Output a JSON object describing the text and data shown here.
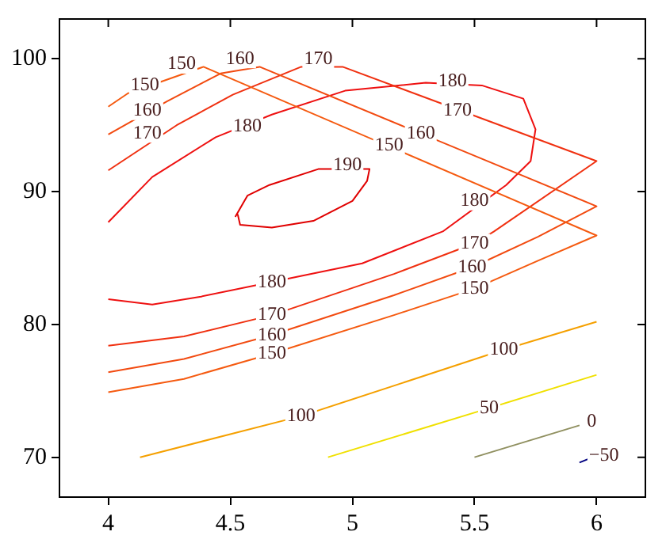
{
  "chart_data": {
    "type": "line",
    "xlim": [
      3.8,
      6.2
    ],
    "ylim": [
      67,
      103
    ],
    "xticks": [
      4,
      4.5,
      5,
      5.5,
      6
    ],
    "yticks": [
      70,
      80,
      90,
      100
    ],
    "grid": false,
    "legend": false,
    "line_style": "solid",
    "series": [
      {
        "color": "#f55a10",
        "x": [
          4,
          4.08,
          4.39,
          6,
          5.76,
          5.5,
          5.17,
          4.67,
          4.31,
          4
        ],
        "values": [
          96.4,
          97.4,
          99.4,
          86.7,
          84.8,
          82.7,
          80.7,
          77.8,
          75.9,
          74.9
        ]
      },
      {
        "color": "#f24a10",
        "x": [
          4,
          4.24,
          4.46,
          4.62,
          6,
          5.76,
          5.49,
          5.17,
          4.67,
          4.31,
          4
        ],
        "values": [
          94.3,
          96.8,
          98.9,
          99.4,
          88.9,
          86.6,
          84.3,
          82.2,
          79.2,
          77.4,
          76.4
        ]
      },
      {
        "color": "#f03010",
        "x": [
          4,
          4.28,
          4.51,
          4.79,
          4.96,
          6,
          5.58,
          5.5,
          5.17,
          4.67,
          4.31,
          4
        ],
        "values": [
          91.6,
          95,
          97.3,
          99.4,
          99.4,
          92.3,
          87,
          86.1,
          83.8,
          80.7,
          79.1,
          78.4
        ]
      },
      {
        "color": "#ee1010",
        "x": [
          4,
          4.18,
          4.44,
          4.67,
          4.97,
          5.3,
          5.53,
          5.7,
          5.75,
          5.73,
          5.63,
          5.37,
          5.04,
          4.67,
          4.38,
          4.18,
          4
        ],
        "values": [
          87.7,
          91.1,
          94.1,
          95.8,
          97.6,
          98.2,
          98,
          97,
          94.7,
          92.3,
          90.5,
          87,
          84.6,
          83.2,
          82.1,
          81.5,
          81.9
        ]
      },
      {
        "color": "#e00000",
        "x": [
          4.52,
          4.57,
          4.66,
          4.86,
          5.07,
          5.06,
          5,
          4.84,
          4.67,
          4.54,
          4.53
        ],
        "values": [
          88.1,
          89.7,
          90.5,
          91.7,
          91.7,
          90.8,
          89.3,
          87.8,
          87.3,
          87.5,
          88.3
        ]
      },
      {
        "color": "#f5a000",
        "x": [
          4.13,
          4.79,
          5.62,
          6
        ],
        "values": [
          70,
          73.1,
          78.1,
          80.2
        ]
      },
      {
        "color": "#f0e000",
        "x": [
          4.9,
          5.56,
          6
        ],
        "values": [
          70,
          73.7,
          76.2
        ]
      },
      {
        "color": "#909060",
        "x": [
          5.5,
          5.93
        ],
        "values": [
          70,
          72.4
        ]
      },
      {
        "color": "#000080",
        "x": [
          5.93,
          5.97
        ],
        "values": [
          69.6,
          69.9
        ]
      }
    ],
    "annotations": [
      {
        "text": "150",
        "x": 4.15,
        "y": 98
      },
      {
        "text": "150",
        "x": 4.3,
        "y": 99.6
      },
      {
        "text": "150",
        "x": 5.15,
        "y": 93.5
      },
      {
        "text": "150",
        "x": 5.5,
        "y": 82.7
      },
      {
        "text": "150",
        "x": 4.67,
        "y": 77.8
      },
      {
        "text": "160",
        "x": 4.16,
        "y": 96.1
      },
      {
        "text": "160",
        "x": 4.54,
        "y": 100
      },
      {
        "text": "160",
        "x": 5.28,
        "y": 94.4
      },
      {
        "text": "160",
        "x": 5.49,
        "y": 84.3
      },
      {
        "text": "160",
        "x": 4.67,
        "y": 79.2
      },
      {
        "text": "170",
        "x": 4.16,
        "y": 94.4
      },
      {
        "text": "170",
        "x": 4.86,
        "y": 100
      },
      {
        "text": "170",
        "x": 5.43,
        "y": 96.1
      },
      {
        "text": "170",
        "x": 5.5,
        "y": 86.1
      },
      {
        "text": "170",
        "x": 4.67,
        "y": 80.7
      },
      {
        "text": "180",
        "x": 4.57,
        "y": 94.9
      },
      {
        "text": "180",
        "x": 5.41,
        "y": 98.3
      },
      {
        "text": "180",
        "x": 5.5,
        "y": 89.3
      },
      {
        "text": "180",
        "x": 4.67,
        "y": 83.2
      },
      {
        "text": "190",
        "x": 4.98,
        "y": 92
      },
      {
        "text": "100",
        "x": 4.79,
        "y": 73.1
      },
      {
        "text": "100",
        "x": 5.62,
        "y": 78.1
      },
      {
        "text": "50",
        "x": 5.56,
        "y": 73.7
      },
      {
        "text": "0",
        "x": 5.98,
        "y": 72.7
      },
      {
        "text": "−50",
        "x": 6.03,
        "y": 70.1
      }
    ]
  }
}
